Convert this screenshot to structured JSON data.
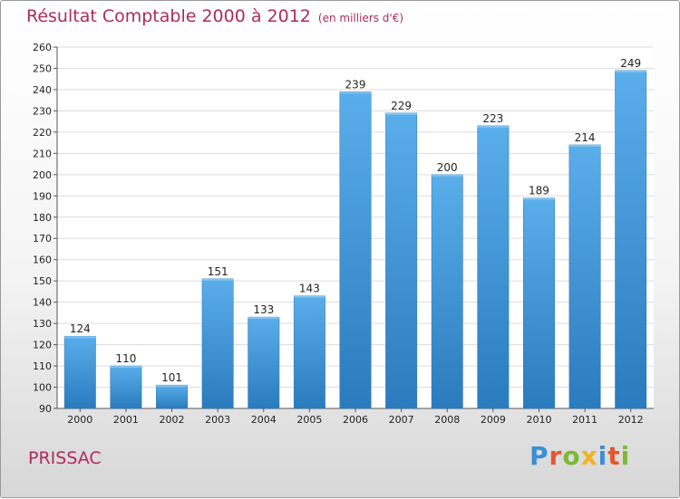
{
  "chart_data": {
    "type": "bar",
    "title": "Résultat Comptable 2000 à 2012",
    "subtitle": "(en milliers d'€)",
    "categories": [
      "2000",
      "2001",
      "2002",
      "2003",
      "2004",
      "2005",
      "2006",
      "2007",
      "2008",
      "2009",
      "2010",
      "2011",
      "2012"
    ],
    "values": [
      124,
      110,
      101,
      151,
      133,
      143,
      239,
      229,
      200,
      223,
      189,
      214,
      249
    ],
    "ylim": [
      90,
      260
    ],
    "ytick_step": 10,
    "grid": true,
    "xlabel": "",
    "ylabel": "",
    "colors": {
      "bar_top": "#5aaeea",
      "bar_bottom": "#2a7bbd",
      "title": "#b02a5b"
    }
  },
  "footer": {
    "place": "PRISSAC",
    "logo": "Proxiti"
  }
}
